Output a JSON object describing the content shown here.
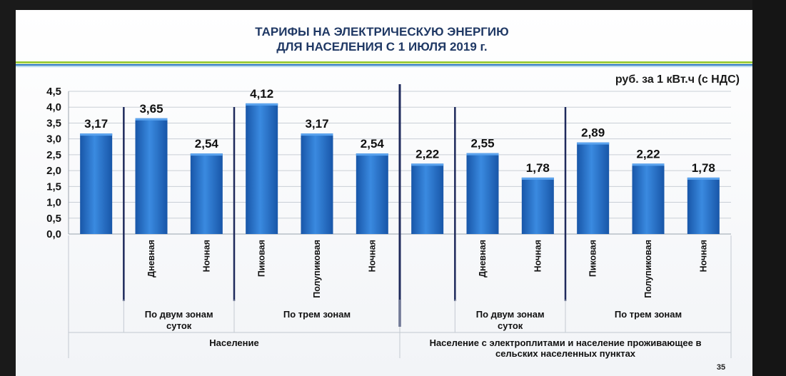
{
  "slide": {
    "title_line1": "ТАРИФЫ НА ЭЛЕКТРИЧЕСКУЮ ЭНЕРГИЮ",
    "title_line2": "ДЛЯ НАСЕЛЕНИЯ С 1 ИЮЛЯ 2019 г.",
    "page_number": "35",
    "colors": {
      "title": "#1f3864",
      "accent_stripe": "#9ccc3c",
      "accent_stripe_2": "#1e6fb8",
      "bar": "#1f6ec4",
      "divider": "#1f2a5c"
    }
  },
  "chart_data": {
    "type": "bar",
    "unit_label": "руб. за 1 кВт.ч (с НДС)",
    "ylim": [
      0,
      4.5
    ],
    "yticks": [
      "0,0",
      "0,5",
      "1,0",
      "1,5",
      "2,0",
      "2,5",
      "3,0",
      "3,5",
      "4,0",
      "4,5"
    ],
    "grid": true,
    "legend": "none",
    "categories": [
      "",
      "Дневная",
      "Ночная",
      "Пиковая",
      "Полупиковая",
      "Ночная",
      "",
      "Дневная",
      "Ночная",
      "Пиковая",
      "Полупиковая",
      "Ночная"
    ],
    "values": [
      3.17,
      3.65,
      2.54,
      4.12,
      3.17,
      2.54,
      2.22,
      2.55,
      1.78,
      2.89,
      2.22,
      1.78
    ],
    "value_labels": [
      "3,17",
      "3,65",
      "2,54",
      "4,12",
      "3,17",
      "2,54",
      "2,22",
      "2,55",
      "1,78",
      "2,89",
      "2,22",
      "1,78"
    ],
    "subgroups": [
      {
        "label_lines": [
          "По двум зонам",
          "суток"
        ],
        "from": 1,
        "to": 2
      },
      {
        "label_lines": [
          "По трем зонам"
        ],
        "from": 3,
        "to": 5
      },
      {
        "label_lines": [
          "По двум зонам",
          "суток"
        ],
        "from": 7,
        "to": 8
      },
      {
        "label_lines": [
          "По трем зонам"
        ],
        "from": 9,
        "to": 11
      }
    ],
    "groups": [
      {
        "label_lines": [
          "Население"
        ],
        "from": 0,
        "to": 5
      },
      {
        "label_lines": [
          "Население с электроплитами и население проживающее в",
          "сельских населенных пунктах"
        ],
        "from": 6,
        "to": 11
      }
    ]
  }
}
